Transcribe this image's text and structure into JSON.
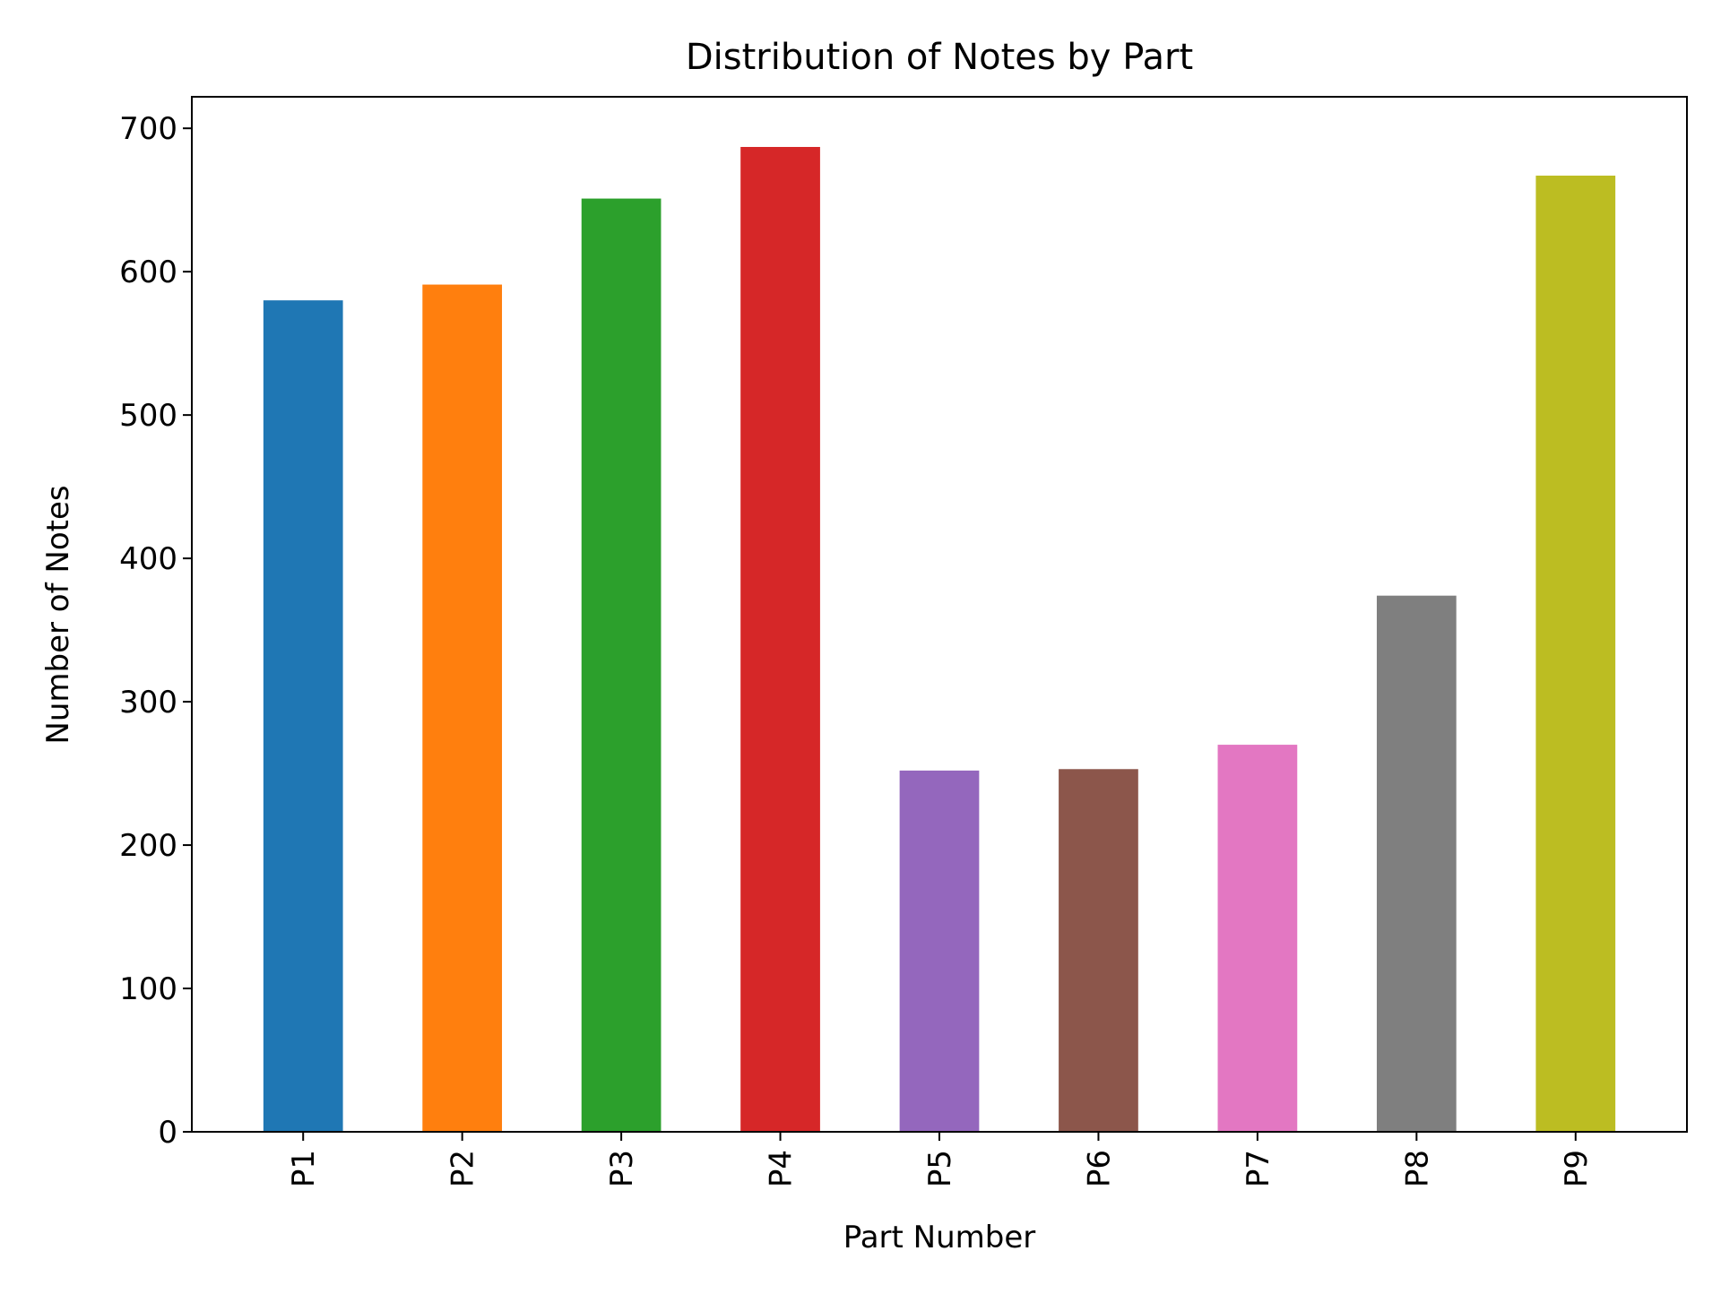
{
  "chart_data": {
    "type": "bar",
    "title": "Distribution of Notes by Part",
    "xlabel": "Part Number",
    "ylabel": "Number of Notes",
    "categories": [
      "P1",
      "P2",
      "P3",
      "P4",
      "P5",
      "P6",
      "P7",
      "P8",
      "P9"
    ],
    "values": [
      580,
      591,
      651,
      687,
      252,
      253,
      270,
      374,
      667
    ],
    "colors": [
      "#1f77b4",
      "#ff7f0e",
      "#2ca02c",
      "#d62728",
      "#9467bd",
      "#8c564b",
      "#e377c2",
      "#7f7f7f",
      "#bcbd22"
    ],
    "ylim": [
      0,
      722
    ],
    "yticks": [
      0,
      100,
      200,
      300,
      400,
      500,
      600,
      700
    ],
    "grid": false,
    "legend": false,
    "xtick_rotation": "vertical"
  }
}
